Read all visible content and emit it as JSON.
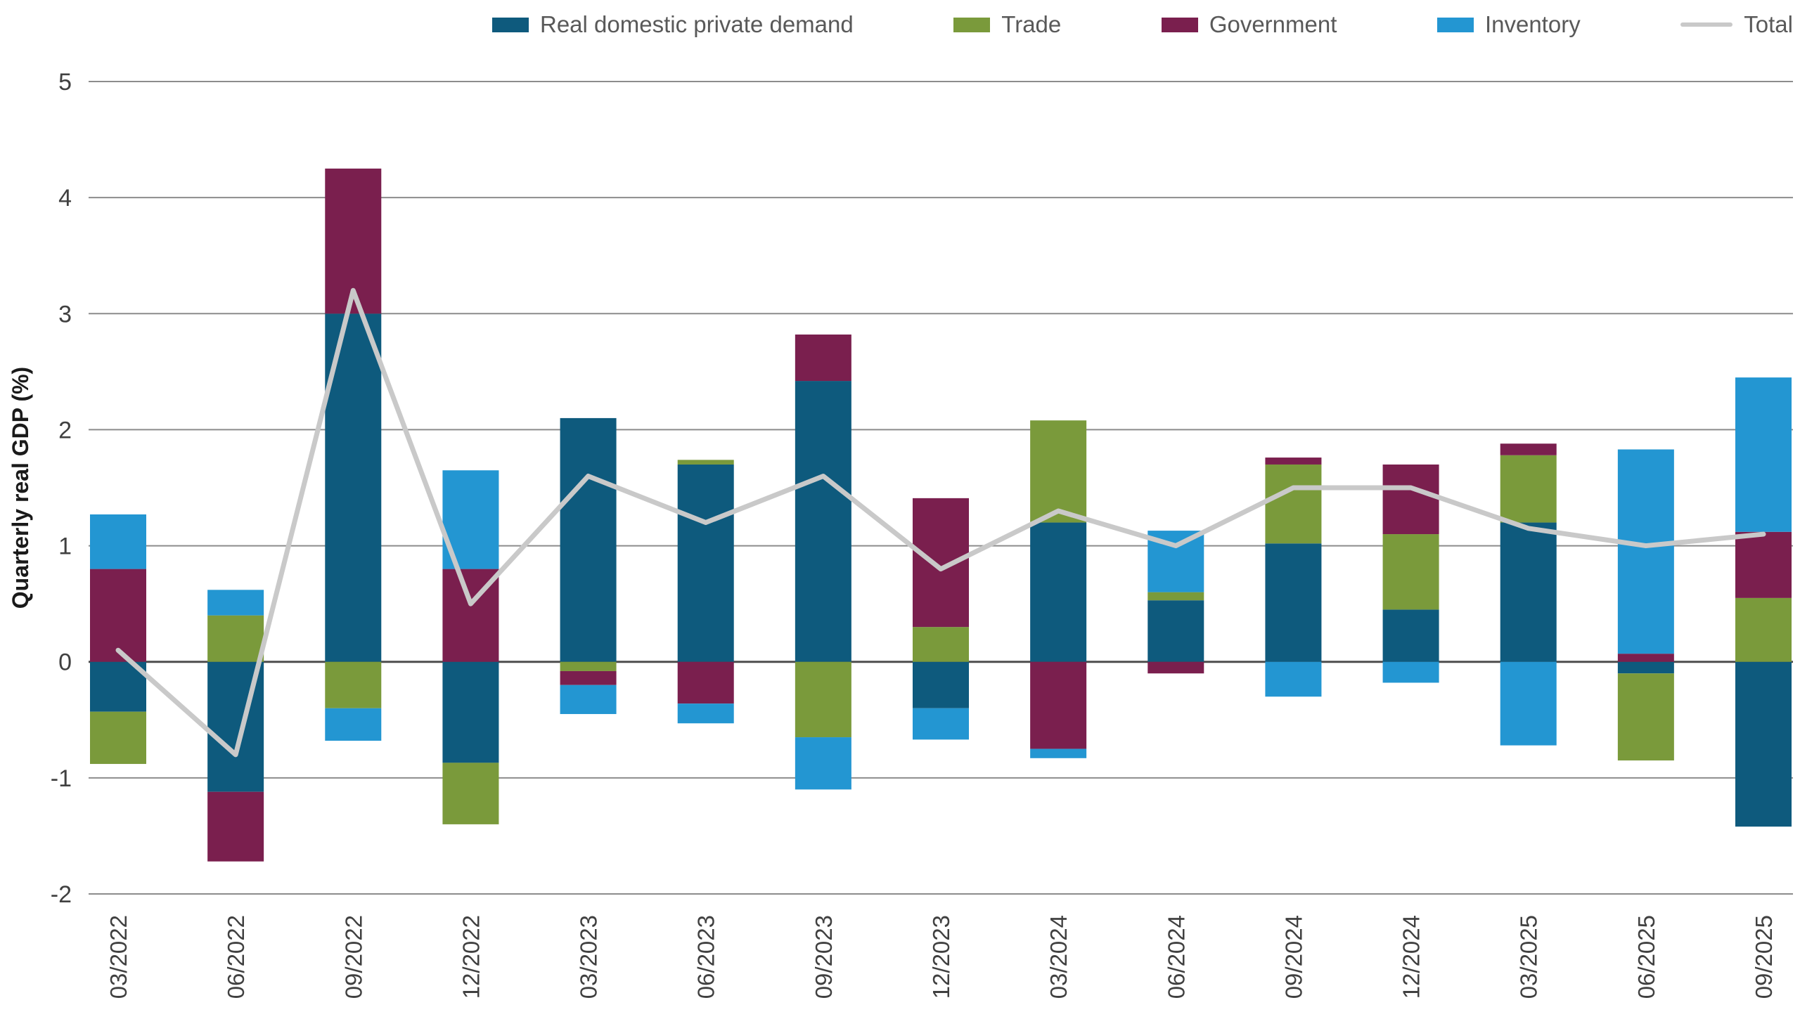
{
  "chart_data": {
    "type": "bar",
    "stacked": true,
    "title": "",
    "xlabel": "",
    "ylabel": "Quarterly real GDP (%)",
    "ylim": [
      -2,
      5
    ],
    "yticks": [
      5,
      4,
      3,
      2,
      1,
      0,
      -1,
      -2
    ],
    "grid": true,
    "legend_position": "top",
    "categories": [
      "03/2022",
      "06/2022",
      "09/2022",
      "12/2022",
      "03/2023",
      "06/2023",
      "09/2023",
      "12/2023",
      "03/2024",
      "06/2024",
      "09/2024",
      "12/2024",
      "03/2025",
      "06/2025",
      "09/2025"
    ],
    "series": [
      {
        "name": "Real domestic private demand",
        "color": "#0e5a7d",
        "values": [
          -0.43,
          -1.12,
          3.0,
          -0.87,
          2.1,
          1.7,
          2.42,
          -0.4,
          1.2,
          0.53,
          1.02,
          0.45,
          1.2,
          -0.1,
          -1.42
        ]
      },
      {
        "name": "Trade",
        "color": "#7a9a3b",
        "values": [
          -0.45,
          0.4,
          -0.4,
          -0.53,
          -0.08,
          0.04,
          -0.65,
          0.3,
          0.88,
          0.07,
          0.68,
          0.65,
          0.58,
          -0.75,
          0.55
        ]
      },
      {
        "name": "Government",
        "color": "#7a1f4e",
        "values": [
          0.8,
          -0.6,
          1.25,
          0.8,
          -0.12,
          -0.36,
          0.4,
          1.11,
          -0.75,
          -0.1,
          0.06,
          0.6,
          0.1,
          0.07,
          0.57
        ]
      },
      {
        "name": "Inventory",
        "color": "#2396d2",
        "values": [
          0.47,
          0.22,
          -0.28,
          0.85,
          -0.25,
          -0.17,
          -0.45,
          -0.27,
          -0.08,
          0.53,
          -0.3,
          -0.18,
          -0.72,
          1.76,
          1.33
        ]
      }
    ],
    "line_series": {
      "name": "Total",
      "color": "#c9c9c9",
      "values": [
        0.1,
        -0.8,
        3.2,
        0.5,
        1.6,
        1.2,
        1.6,
        0.8,
        1.3,
        1.0,
        1.5,
        1.5,
        1.15,
        1.0,
        1.1
      ]
    }
  }
}
